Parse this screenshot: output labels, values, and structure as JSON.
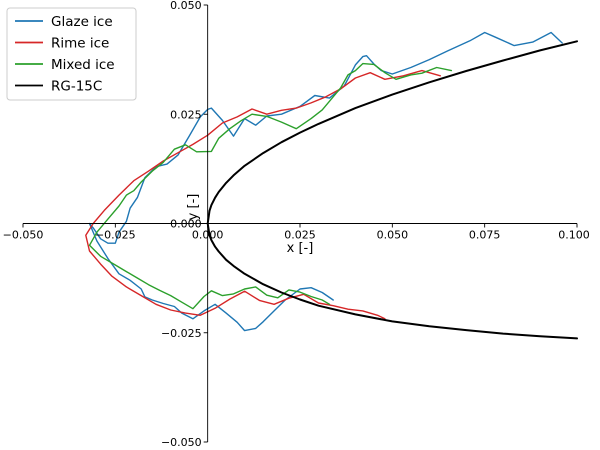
{
  "chart_data": {
    "type": "line",
    "title": "",
    "xlabel": "x [-]",
    "ylabel": "y [-]",
    "xlim": [
      -0.05,
      0.1
    ],
    "ylim": [
      -0.05,
      0.05
    ],
    "x_ticks": [
      -0.05,
      -0.025,
      0.0,
      0.025,
      0.05,
      0.075,
      0.1
    ],
    "x_tick_labels": [
      "−0.050",
      "−0.025",
      "0.000",
      "0.025",
      "0.050",
      "0.075",
      "0.100"
    ],
    "y_ticks": [
      -0.05,
      -0.025,
      0.0,
      0.025,
      0.05
    ],
    "y_tick_labels": [
      "−0.050",
      "−0.025",
      "0.000",
      "0.025",
      "0.050"
    ],
    "grid": false,
    "legend_position": "top-left",
    "series": [
      {
        "name": "Glaze ice",
        "color": "#1f77b4",
        "x": [
          0.096,
          0.093,
          0.088,
          0.083,
          0.078,
          0.075,
          0.071,
          0.065,
          0.06,
          0.055,
          0.05,
          0.047,
          0.045,
          0.043,
          0.042,
          0.04,
          0.037,
          0.033,
          0.029,
          0.025,
          0.02,
          0.016,
          0.013,
          0.01,
          0.007,
          0.004,
          0.001,
          0.0,
          -0.002,
          -0.005,
          -0.008,
          -0.011,
          -0.014,
          -0.017,
          -0.019,
          -0.021,
          -0.022,
          -0.024,
          -0.025,
          -0.027,
          -0.029,
          -0.031,
          -0.032,
          -0.03,
          -0.027,
          -0.024,
          -0.021,
          -0.018,
          -0.017,
          -0.015,
          -0.012,
          -0.009,
          -0.007,
          -0.004,
          -0.001,
          0.002,
          0.005,
          0.008,
          0.01,
          0.013,
          0.015,
          0.018,
          0.021,
          0.025,
          0.028,
          0.031,
          0.034
        ],
        "y": [
          0.0413,
          0.0437,
          0.0415,
          0.0407,
          0.0426,
          0.0437,
          0.0418,
          0.0395,
          0.0375,
          0.0357,
          0.0342,
          0.035,
          0.0365,
          0.0384,
          0.0382,
          0.0363,
          0.0315,
          0.0287,
          0.0293,
          0.0268,
          0.025,
          0.0246,
          0.0225,
          0.024,
          0.02,
          0.0236,
          0.0264,
          0.0261,
          0.0244,
          0.02,
          0.0157,
          0.0136,
          0.013,
          0.0105,
          0.006,
          0.0035,
          0.0005,
          -0.002,
          -0.0045,
          -0.0045,
          -0.0035,
          -0.001,
          0.0,
          -0.004,
          -0.008,
          -0.0115,
          -0.013,
          -0.015,
          -0.0168,
          -0.0175,
          -0.0183,
          -0.019,
          -0.0205,
          -0.0218,
          -0.02,
          -0.0185,
          -0.0205,
          -0.0226,
          -0.0245,
          -0.024,
          -0.0225,
          -0.02,
          -0.0175,
          -0.015,
          -0.0147,
          -0.0158,
          -0.0175
        ]
      },
      {
        "name": "Rime ice",
        "color": "#d62728",
        "x": [
          0.063,
          0.058,
          0.053,
          0.048,
          0.044,
          0.04,
          0.036,
          0.032,
          0.028,
          0.024,
          0.02,
          0.016,
          0.012,
          0.008,
          0.004,
          0.0,
          -0.004,
          -0.008,
          -0.012,
          -0.016,
          -0.02,
          -0.024,
          -0.028,
          -0.031,
          -0.033,
          -0.032,
          -0.029,
          -0.026,
          -0.022,
          -0.018,
          -0.014,
          -0.01,
          -0.006,
          -0.002,
          0.002,
          0.006,
          0.01,
          0.014,
          0.018,
          0.022,
          0.026,
          0.03,
          0.034,
          0.038,
          0.042,
          0.046,
          0.048
        ],
        "y": [
          0.0338,
          0.035,
          0.0338,
          0.033,
          0.0345,
          0.0333,
          0.0308,
          0.029,
          0.0276,
          0.0264,
          0.0259,
          0.025,
          0.0262,
          0.0244,
          0.023,
          0.0202,
          0.0181,
          0.0162,
          0.0143,
          0.012,
          0.0098,
          0.0065,
          0.003,
          0.0,
          -0.0027,
          -0.0063,
          -0.0093,
          -0.012,
          -0.0145,
          -0.0165,
          -0.0185,
          -0.0198,
          -0.0205,
          -0.021,
          -0.0194,
          -0.0173,
          -0.0155,
          -0.0176,
          -0.0185,
          -0.0171,
          -0.0162,
          -0.0182,
          -0.0188,
          -0.0196,
          -0.02,
          -0.021,
          -0.0218
        ]
      },
      {
        "name": "Mixed ice",
        "color": "#2ca02c",
        "x": [
          0.066,
          0.062,
          0.058,
          0.055,
          0.051,
          0.048,
          0.045,
          0.042,
          0.04,
          0.038,
          0.036,
          0.034,
          0.031,
          0.028,
          0.024,
          0.02,
          0.016,
          0.012,
          0.009,
          0.006,
          0.003,
          0.001,
          -0.003,
          -0.006,
          -0.009,
          -0.012,
          -0.015,
          -0.018,
          -0.02,
          -0.022,
          -0.024,
          -0.027,
          -0.03,
          -0.032,
          -0.029,
          -0.025,
          -0.022,
          -0.019,
          -0.016,
          -0.013,
          -0.01,
          -0.007,
          -0.004,
          -0.001,
          0.001,
          0.004,
          0.007,
          0.01,
          0.013,
          0.016,
          0.019,
          0.022,
          0.025,
          0.028,
          0.031,
          0.033
        ],
        "y": [
          0.035,
          0.0357,
          0.0344,
          0.034,
          0.033,
          0.0345,
          0.0364,
          0.0366,
          0.035,
          0.034,
          0.031,
          0.029,
          0.026,
          0.024,
          0.0217,
          0.0232,
          0.0245,
          0.025,
          0.0235,
          0.0217,
          0.0195,
          0.0165,
          0.0164,
          0.018,
          0.017,
          0.014,
          0.012,
          0.0095,
          0.0075,
          0.0065,
          0.004,
          0.001,
          -0.002,
          -0.005,
          -0.0075,
          -0.0095,
          -0.011,
          -0.0125,
          -0.014,
          -0.0153,
          -0.0165,
          -0.018,
          -0.0195,
          -0.0167,
          -0.0154,
          -0.0165,
          -0.0161,
          -0.015,
          -0.0145,
          -0.0164,
          -0.017,
          -0.0152,
          -0.0157,
          -0.0167,
          -0.0175,
          -0.0185
        ]
      },
      {
        "name": "RG-15C",
        "color": "#000000",
        "x": [
          0.1,
          0.09,
          0.08,
          0.07,
          0.06,
          0.05,
          0.04,
          0.03,
          0.025,
          0.02,
          0.015,
          0.01,
          0.007,
          0.005,
          0.003,
          0.002,
          0.001,
          0.0005,
          0.0,
          0.0005,
          0.001,
          0.002,
          0.003,
          0.005,
          0.007,
          0.01,
          0.015,
          0.02,
          0.025,
          0.03,
          0.04,
          0.05,
          0.06,
          0.07,
          0.08,
          0.09,
          0.1
        ],
        "y": [
          0.0417,
          0.0396,
          0.0373,
          0.0349,
          0.0323,
          0.0295,
          0.0264,
          0.0228,
          0.0208,
          0.0186,
          0.0161,
          0.0132,
          0.011,
          0.0093,
          0.0072,
          0.0059,
          0.0042,
          0.0029,
          0.0,
          -0.0027,
          -0.0038,
          -0.0053,
          -0.0064,
          -0.0083,
          -0.0097,
          -0.0115,
          -0.0139,
          -0.0158,
          -0.0174,
          -0.0188,
          -0.0208,
          -0.0224,
          -0.0235,
          -0.0244,
          -0.0252,
          -0.0258,
          -0.0263
        ]
      }
    ]
  }
}
